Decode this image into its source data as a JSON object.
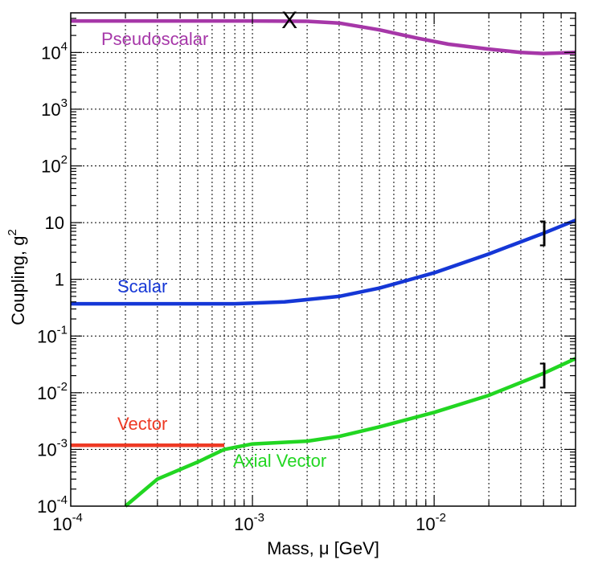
{
  "chart_data": {
    "type": "line",
    "x_scale": "log",
    "y_scale": "log",
    "xlabel": "Mass, μ [GeV]",
    "ylabel": "Coupling, g²",
    "xlim": [
      0.0001,
      0.06
    ],
    "ylim": [
      0.0001,
      50000
    ],
    "grid": true,
    "x_ticks": [
      {
        "value": 0.0001,
        "base": "10",
        "exp": "-4"
      },
      {
        "value": 0.001,
        "base": "10",
        "exp": "-3"
      },
      {
        "value": 0.01,
        "base": "10",
        "exp": "-2"
      }
    ],
    "y_ticks": [
      {
        "value": 0.0001,
        "base": "10",
        "exp": "-4"
      },
      {
        "value": 0.001,
        "base": "10",
        "exp": "-3"
      },
      {
        "value": 0.01,
        "base": "10",
        "exp": "-2"
      },
      {
        "value": 0.1,
        "base": "10",
        "exp": "-1"
      },
      {
        "value": 1,
        "base": "1",
        "exp": ""
      },
      {
        "value": 10,
        "base": "10",
        "exp": ""
      },
      {
        "value": 100,
        "base": "10",
        "exp": "2"
      },
      {
        "value": 1000,
        "base": "10",
        "exp": "3"
      },
      {
        "value": 10000,
        "base": "10",
        "exp": "4"
      }
    ],
    "series": [
      {
        "name": "Pseudoscalar",
        "color": "#a637a8",
        "x": [
          0.0001,
          0.0005,
          0.001,
          0.002,
          0.003,
          0.005,
          0.008,
          0.012,
          0.02,
          0.03,
          0.04,
          0.06
        ],
        "y": [
          36000,
          36000,
          36000,
          35500,
          33000,
          25000,
          18000,
          14000,
          11500,
          10000,
          9600,
          10000
        ]
      },
      {
        "name": "Scalar",
        "color": "#1537d6",
        "x": [
          0.0001,
          0.0003,
          0.0008,
          0.0015,
          0.003,
          0.005,
          0.01,
          0.02,
          0.04,
          0.06
        ],
        "y": [
          0.37,
          0.37,
          0.37,
          0.4,
          0.5,
          0.7,
          1.3,
          2.8,
          6.5,
          11
        ]
      },
      {
        "name": "Vector",
        "color": "#ee3a24",
        "x": [
          0.0001,
          0.0003,
          0.0007
        ],
        "y": [
          0.00118,
          0.00118,
          0.00118
        ]
      },
      {
        "name": "Axial Vector",
        "color": "#22d622",
        "x": [
          0.0002,
          0.0003,
          0.0005,
          0.0007,
          0.001,
          0.002,
          0.003,
          0.005,
          0.01,
          0.02,
          0.04,
          0.06
        ],
        "y": [
          0.0001,
          0.0003,
          0.0006,
          0.001,
          0.00125,
          0.0014,
          0.0017,
          0.0025,
          0.0045,
          0.009,
          0.022,
          0.04
        ]
      }
    ],
    "annotations": [
      {
        "type": "text",
        "text": "X",
        "x": 0.0016,
        "y": 36000
      },
      {
        "type": "text",
        "text": "]",
        "x": 0.04,
        "y": 6.5
      },
      {
        "type": "text",
        "text": "]",
        "x": 0.04,
        "y": 0.02
      }
    ]
  }
}
